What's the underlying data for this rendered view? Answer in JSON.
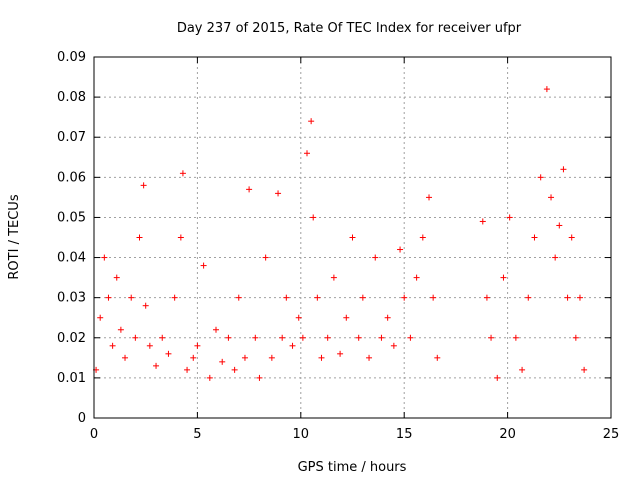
{
  "chart_data": {
    "type": "scatter",
    "title": "Day 237 of 2015, Rate Of TEC Index for receiver ufpr",
    "xlabel": "GPS time / hours",
    "ylabel": "ROTI / TECUs",
    "xlim": [
      0,
      25
    ],
    "ylim": [
      0,
      0.09
    ],
    "x_ticks": [
      "0",
      "5",
      "10",
      "15",
      "20",
      "25"
    ],
    "y_ticks": [
      "0",
      "0.01",
      "0.02",
      "0.03",
      "0.04",
      "0.05",
      "0.06",
      "0.07",
      "0.08",
      "0.09"
    ],
    "grid": true,
    "marker": "+",
    "color": "#ff0000",
    "series": [
      {
        "x": [
          0.1,
          0.3,
          0.5,
          0.7,
          0.9,
          1.1,
          1.3,
          1.5,
          1.8,
          2.0,
          2.2,
          2.4,
          2.5,
          2.7,
          3.0,
          3.3,
          3.6,
          3.9,
          4.2,
          4.3,
          4.5,
          4.8,
          5.0,
          5.3,
          5.6,
          5.9,
          6.2,
          6.5,
          6.8,
          7.0,
          7.3,
          7.5,
          7.8,
          8.0,
          8.3,
          8.6,
          8.9,
          9.1,
          9.3,
          9.6,
          9.9,
          10.1,
          10.3,
          10.5,
          10.6,
          10.8,
          11.0,
          11.3,
          11.6,
          11.9,
          12.2,
          12.5,
          12.8,
          13.0,
          13.3,
          13.6,
          13.9,
          14.2,
          14.5,
          14.8,
          15.0,
          15.3,
          15.6,
          15.9,
          16.2,
          16.4,
          16.6,
          18.8,
          19.0,
          19.2,
          19.5,
          19.8,
          20.1,
          20.4,
          20.7,
          21.0,
          21.3,
          21.6,
          21.9,
          22.1,
          22.3,
          22.5,
          22.7,
          22.9,
          23.1,
          23.3,
          23.5,
          23.7
        ],
        "y": [
          0.012,
          0.025,
          0.04,
          0.03,
          0.018,
          0.035,
          0.022,
          0.015,
          0.03,
          0.02,
          0.045,
          0.058,
          0.028,
          0.018,
          0.013,
          0.02,
          0.016,
          0.03,
          0.045,
          0.061,
          0.012,
          0.015,
          0.018,
          0.038,
          0.01,
          0.022,
          0.014,
          0.02,
          0.012,
          0.03,
          0.015,
          0.057,
          0.02,
          0.01,
          0.04,
          0.015,
          0.056,
          0.02,
          0.03,
          0.018,
          0.025,
          0.02,
          0.066,
          0.074,
          0.05,
          0.03,
          0.015,
          0.02,
          0.035,
          0.016,
          0.025,
          0.045,
          0.02,
          0.03,
          0.015,
          0.04,
          0.02,
          0.025,
          0.018,
          0.042,
          0.03,
          0.02,
          0.035,
          0.045,
          0.055,
          0.03,
          0.015,
          0.049,
          0.03,
          0.02,
          0.01,
          0.035,
          0.05,
          0.02,
          0.012,
          0.03,
          0.045,
          0.06,
          0.082,
          0.055,
          0.04,
          0.048,
          0.062,
          0.03,
          0.045,
          0.02,
          0.03,
          0.012
        ]
      }
    ]
  }
}
